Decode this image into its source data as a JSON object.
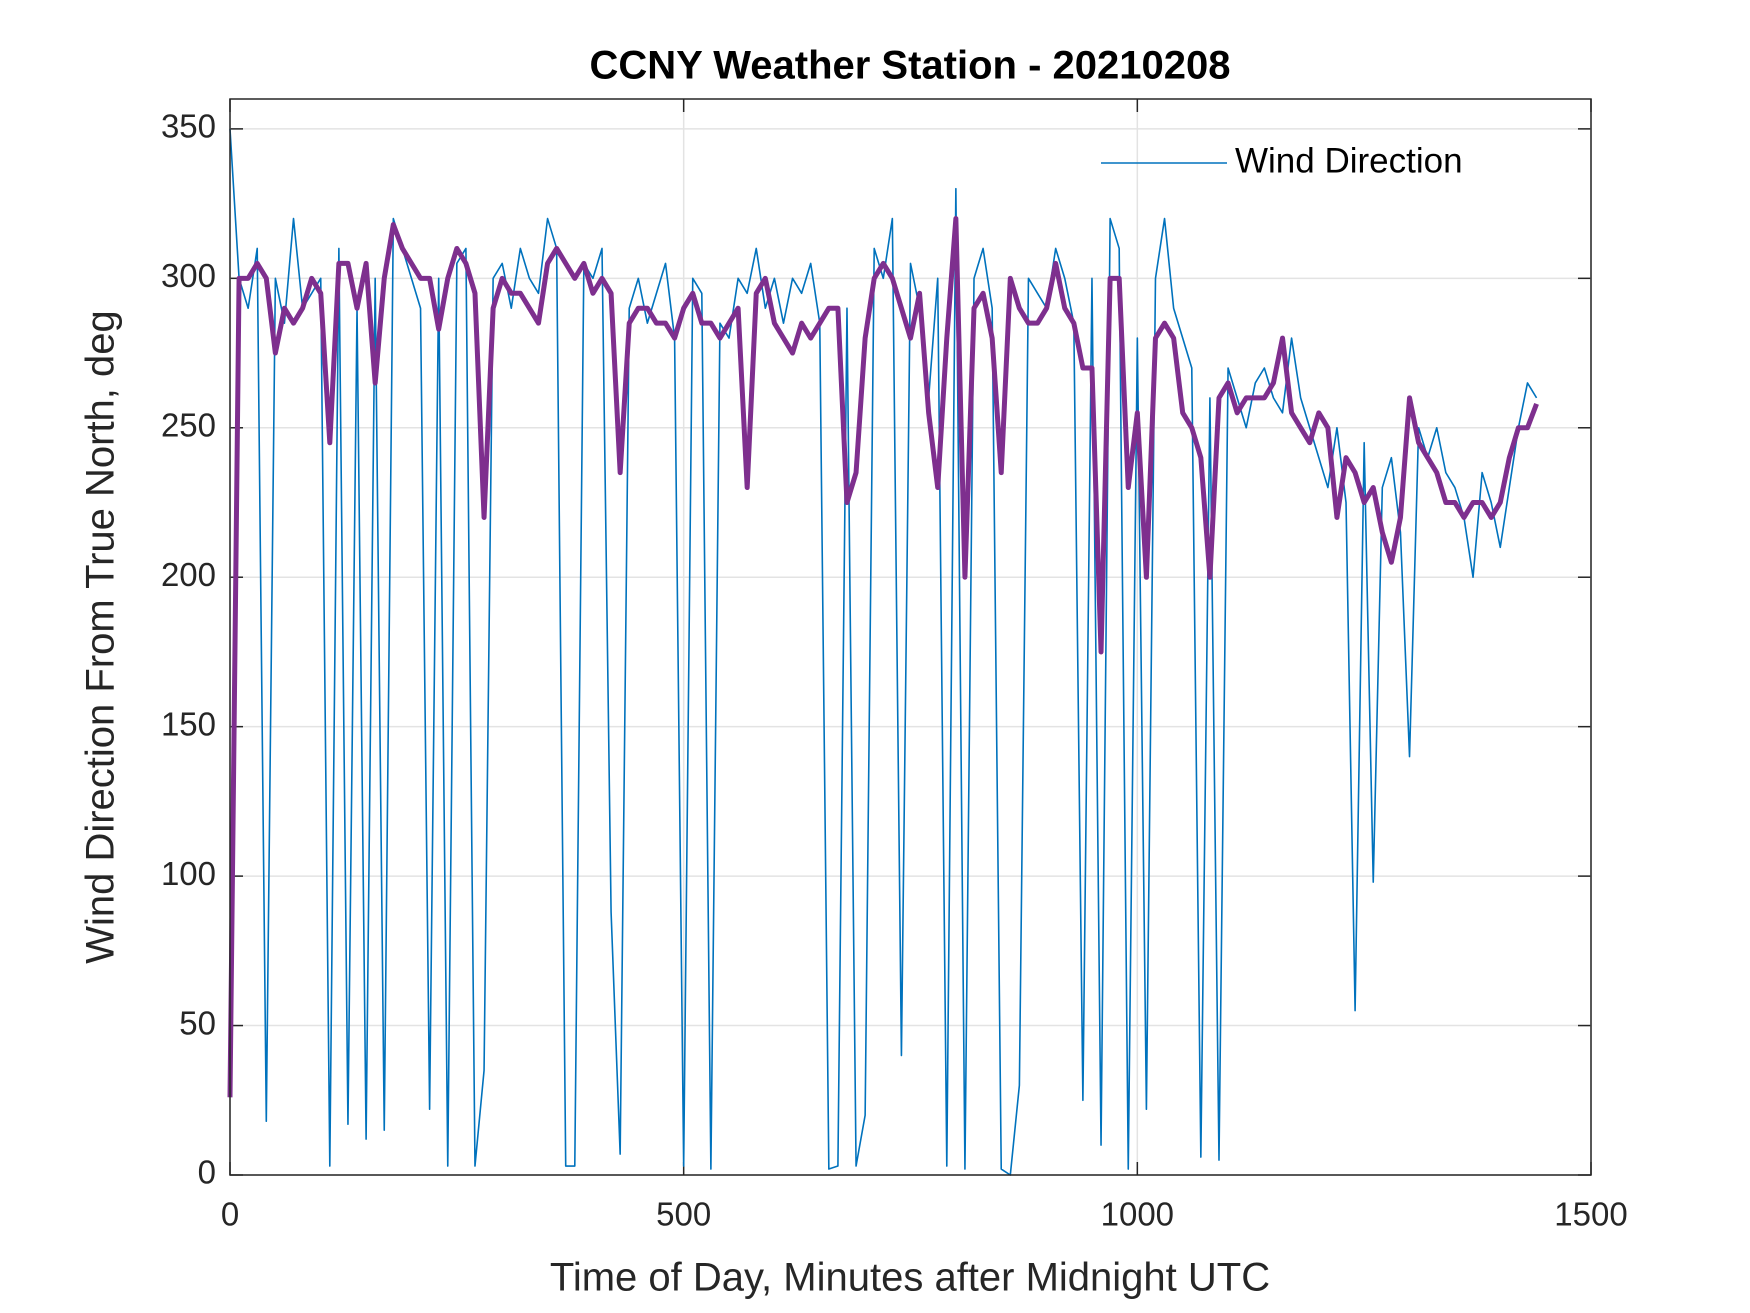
{
  "chart_data": {
    "type": "line",
    "title": "CCNY Weather Station - 20210208",
    "xlabel": "Time of Day, Minutes after Midnight UTC",
    "ylabel": "Wind Direction From True North, deg",
    "xlim": [
      0,
      1500
    ],
    "xticks": [
      0,
      500,
      1000,
      1500
    ],
    "ylim": [
      0,
      360
    ],
    "yticks": [
      0,
      50,
      100,
      150,
      200,
      250,
      300,
      350
    ],
    "grid": true,
    "legend": "top-right",
    "x": [
      0,
      10,
      20,
      30,
      40,
      50,
      60,
      70,
      80,
      90,
      100,
      110,
      120,
      130,
      140,
      150,
      160,
      170,
      180,
      190,
      200,
      210,
      220,
      230,
      240,
      250,
      260,
      270,
      280,
      290,
      300,
      310,
      320,
      330,
      340,
      350,
      360,
      370,
      380,
      390,
      400,
      410,
      420,
      430,
      440,
      450,
      460,
      470,
      480,
      490,
      500,
      510,
      520,
      530,
      540,
      550,
      560,
      570,
      580,
      590,
      600,
      610,
      620,
      630,
      640,
      650,
      660,
      670,
      680,
      690,
      700,
      710,
      720,
      730,
      740,
      750,
      760,
      770,
      780,
      790,
      800,
      810,
      820,
      830,
      840,
      850,
      860,
      870,
      880,
      890,
      900,
      910,
      920,
      930,
      940,
      950,
      960,
      970,
      980,
      990,
      1000,
      1010,
      1020,
      1030,
      1040,
      1050,
      1060,
      1070,
      1080,
      1090,
      1100,
      1110,
      1120,
      1130,
      1140,
      1150,
      1160,
      1170,
      1180,
      1190,
      1200,
      1210,
      1220,
      1230,
      1240,
      1250,
      1260,
      1270,
      1280,
      1290,
      1300,
      1310,
      1320,
      1330,
      1340,
      1350,
      1360,
      1370,
      1380,
      1390,
      1400,
      1410,
      1420,
      1430,
      1440
    ],
    "series": [
      {
        "name": "Wind Direction",
        "color": "#0072bd",
        "width": 1.6,
        "values": [
          350,
          300,
          290,
          310,
          18,
          300,
          285,
          320,
          290,
          295,
          300,
          3,
          310,
          17,
          290,
          12,
          300,
          15,
          320,
          310,
          300,
          290,
          22,
          300,
          3,
          305,
          310,
          3,
          35,
          300,
          305,
          290,
          310,
          300,
          295,
          320,
          310,
          3,
          3,
          305,
          300,
          310,
          88,
          7,
          290,
          300,
          285,
          295,
          305,
          280,
          3,
          300,
          295,
          2,
          285,
          280,
          300,
          295,
          310,
          290,
          300,
          285,
          300,
          295,
          305,
          285,
          2,
          3,
          290,
          3,
          20,
          310,
          300,
          320,
          40,
          305,
          290,
          260,
          300,
          3,
          330,
          2,
          300,
          310,
          290,
          2,
          0,
          30,
          300,
          295,
          290,
          310,
          300,
          285,
          25,
          300,
          10,
          320,
          310,
          2,
          280,
          22,
          300,
          320,
          290,
          280,
          270,
          6,
          260,
          5,
          270,
          260,
          250,
          265,
          270,
          260,
          255,
          280,
          260,
          250,
          240,
          230,
          250,
          225,
          55,
          245,
          98,
          230,
          240,
          215,
          140,
          250,
          240,
          250,
          235,
          230,
          220,
          200,
          235,
          225,
          210,
          230,
          250,
          265,
          260
        ]
      },
      {
        "color": "#7e2f8e",
        "width": 5,
        "values": [
          26,
          300,
          300,
          305,
          300,
          275,
          290,
          285,
          290,
          300,
          295,
          245,
          305,
          305,
          290,
          305,
          265,
          300,
          318,
          310,
          305,
          300,
          300,
          283,
          300,
          310,
          305,
          295,
          220,
          290,
          300,
          295,
          295,
          290,
          285,
          305,
          310,
          305,
          300,
          305,
          295,
          300,
          295,
          235,
          285,
          290,
          290,
          285,
          285,
          280,
          290,
          295,
          285,
          285,
          280,
          285,
          290,
          230,
          295,
          300,
          285,
          280,
          275,
          285,
          280,
          285,
          290,
          290,
          225,
          235,
          280,
          300,
          305,
          300,
          290,
          280,
          295,
          255,
          230,
          280,
          320,
          200,
          290,
          295,
          280,
          235,
          300,
          290,
          285,
          285,
          290,
          305,
          290,
          285,
          270,
          270,
          175,
          300,
          300,
          230,
          255,
          200,
          280,
          285,
          280,
          255,
          250,
          240,
          200,
          260,
          265,
          255,
          260,
          260,
          260,
          265,
          280,
          255,
          250,
          245,
          255,
          250,
          220,
          240,
          235,
          225,
          230,
          215,
          205,
          220,
          260,
          245,
          240,
          235,
          225,
          225,
          220,
          225,
          225,
          220,
          225,
          240,
          250,
          250,
          258
        ]
      }
    ]
  }
}
